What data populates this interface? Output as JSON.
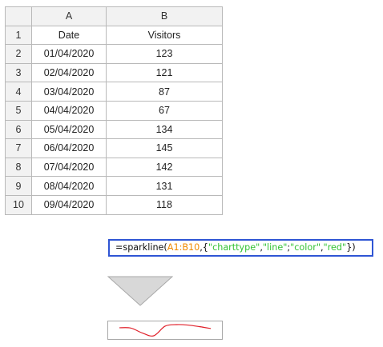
{
  "sheet": {
    "columns": [
      "A",
      "B"
    ],
    "row_numbers": [
      "1",
      "2",
      "3",
      "4",
      "5",
      "6",
      "7",
      "8",
      "9",
      "10"
    ],
    "rows": [
      [
        "Date",
        "Visitors"
      ],
      [
        "01/04/2020",
        "123"
      ],
      [
        "02/04/2020",
        "121"
      ],
      [
        "03/04/2020",
        "87"
      ],
      [
        "04/04/2020",
        "67"
      ],
      [
        "05/04/2020",
        "134"
      ],
      [
        "06/04/2020",
        "145"
      ],
      [
        "07/04/2020",
        "142"
      ],
      [
        "08/04/2020",
        "131"
      ],
      [
        "09/04/2020",
        "118"
      ]
    ]
  },
  "formula": {
    "prefix": "=sparkline(",
    "range": "A1:B10",
    "sep1": ",{",
    "q1": "\"charttype\"",
    "comma1": ",",
    "q2": "\"line\"",
    "semi": ";",
    "q3": "\"color\"",
    "comma2": ",",
    "q4": "\"red\"",
    "suffix": "})"
  },
  "colors": {
    "formula_border": "#2f55d4",
    "range_color": "#f08a00",
    "string_color": "#33c233",
    "sparkline_color": "#e0202a",
    "arrow_fill": "#d8d8d8"
  },
  "icons": {
    "arrow": "down-triangle-icon"
  },
  "sparkline": {
    "color": "red",
    "values": [
      123,
      121,
      87,
      67,
      134,
      145,
      142,
      131,
      118
    ]
  }
}
